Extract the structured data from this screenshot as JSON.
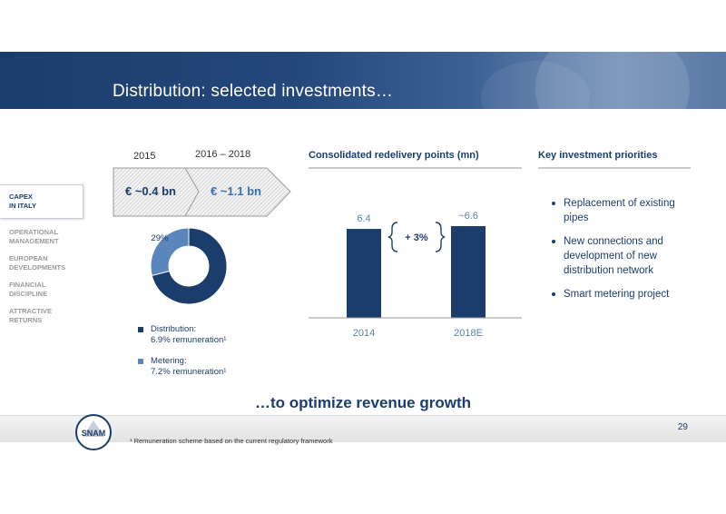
{
  "header": {
    "title": "Distribution: selected investments…"
  },
  "sidebar": {
    "items": [
      {
        "line1": "CAPEX",
        "line2": "IN ITALY",
        "active": true
      },
      {
        "line1": "OPERATIONAL",
        "line2": "MANAGEMENT",
        "active": false
      },
      {
        "line1": "EUROPEAN",
        "line2": "DEVELOPMENTS",
        "active": false
      },
      {
        "line1": "FINANCIAL",
        "line2": "DISCIPLINE",
        "active": false
      },
      {
        "line1": "ATTRACTIVE",
        "line2": "RETURNS",
        "active": false
      }
    ]
  },
  "capex": {
    "year_2015": "2015",
    "year_range": "2016 – 2018",
    "value_2015": "€ ~0.4 bn",
    "value_range": "€ ~1.1 bn",
    "value_2015_color": "#1b3d6c",
    "value_range_color": "#3b6fb5"
  },
  "chart_data": [
    {
      "type": "pie",
      "variant": "donut",
      "values": [
        71,
        29
      ],
      "labels": [
        "71%",
        "29%"
      ],
      "colors": [
        "#1b3d6c",
        "#5b86bd"
      ],
      "legend": [
        {
          "line1": "Distribution:",
          "line2": "6.9% remuneration¹",
          "color": "#1b3d6c"
        },
        {
          "line1": "Metering:",
          "line2": "7.2% remuneration¹",
          "color": "#5b86bd"
        }
      ]
    },
    {
      "type": "bar",
      "title": "Consolidated redelivery points (mn)",
      "categories": [
        "2014",
        "2018E"
      ],
      "values": [
        6.4,
        6.6
      ],
      "data_labels": [
        "6.4",
        "~6.6"
      ],
      "growth_label": "+ 3%",
      "bar_color": "#1b3d6c",
      "ylim": [
        0,
        7.5
      ]
    }
  ],
  "priorities": {
    "title": "Key investment priorities",
    "items": [
      "Replacement of existing pipes",
      "New connections and development of new distribution network",
      "Smart metering project"
    ]
  },
  "tagline": "…to optimize revenue growth",
  "footer": {
    "page_number": "29",
    "footnote": "¹ Remuneration scheme based on the current regulatory framework",
    "logo_text": "SNAM"
  }
}
